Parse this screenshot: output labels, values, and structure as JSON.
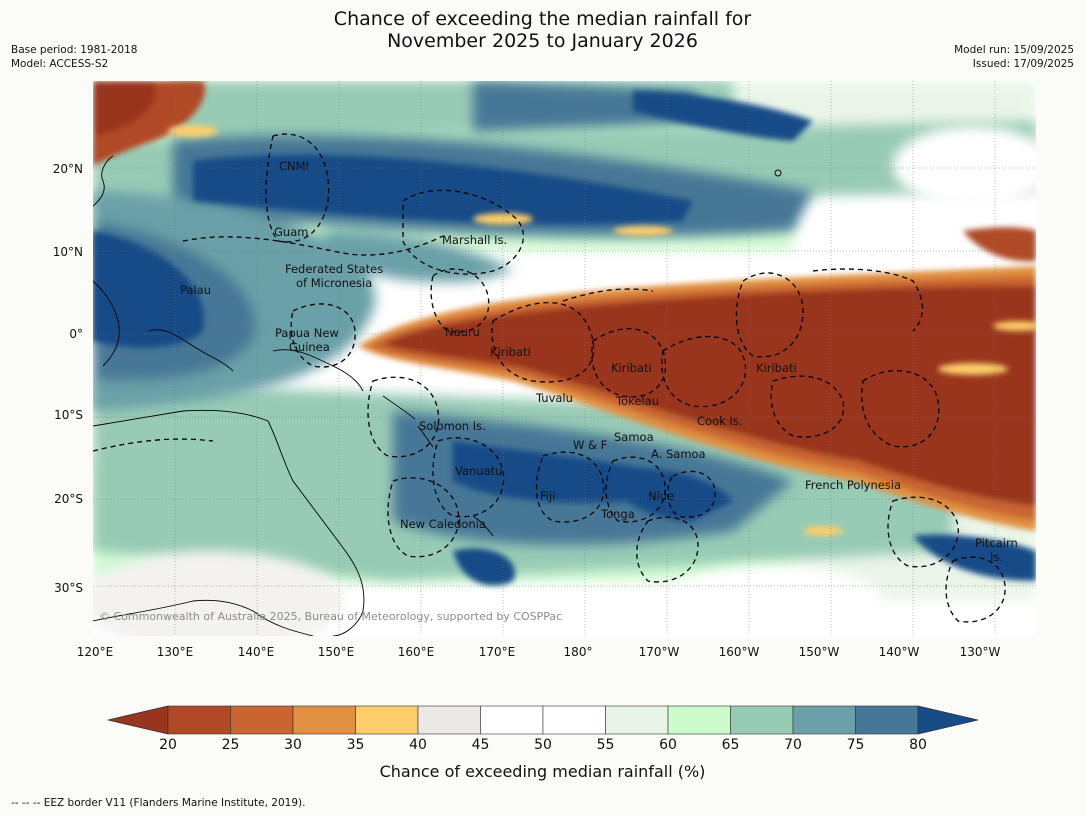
{
  "title": {
    "line1": "Chance of exceeding the median rainfall for",
    "line2": "November 2025 to January 2026"
  },
  "meta_left": {
    "base_period": "Base period: 1981-2018",
    "model": "Model: ACCESS-S2"
  },
  "meta_right": {
    "model_run": "Model run: 15/09/2025",
    "issued": "Issued: 17/09/2025"
  },
  "map": {
    "lon_range": [
      120,
      235
    ],
    "lat_range": [
      -36,
      31
    ],
    "lon_ticks": [
      "120°E",
      "130°E",
      "140°E",
      "150°E",
      "160°E",
      "170°E",
      "180°",
      "170°W",
      "160°W",
      "150°W",
      "140°W",
      "130°W"
    ],
    "lat_ticks": [
      "20°N",
      "10°N",
      "0°",
      "10°S",
      "20°S",
      "30°S"
    ],
    "labels": {
      "cnmi": "CNMI",
      "guam": "Guam",
      "marshall": "Marshall Is.",
      "fsm_1": "Federated States",
      "fsm_2": "of Micronesia",
      "palau": "Palau",
      "png_1": "Papua New",
      "png_2": "Guinea",
      "nauru": "Nauru",
      "kiribati_w": "Kiribati",
      "kiribati_c": "Kiribati",
      "kiribati_e": "Kiribati",
      "tuvalu": "Tuvalu",
      "tokelau": "Tokelau",
      "cook": "Cook Is.",
      "solomon": "Solomon Is.",
      "wf": "W & F",
      "samoa": "Samoa",
      "asamoa": "A. Samoa",
      "vanuatu": "Vanuatu",
      "fiji": "Fiji",
      "niue": "Niue",
      "tonga": "Tonga",
      "french_polynesia": "French Polynesia",
      "new_caledonia": "New Caledonia",
      "pitcairn_1": "Pitcairn",
      "pitcairn_2": "Is."
    },
    "copyright": "© Commonwealth of Australia 2025, Bureau of Meteorology, supported by COSPPac"
  },
  "colorbar": {
    "ticks": [
      "20",
      "25",
      "30",
      "35",
      "40",
      "45",
      "50",
      "55",
      "60",
      "65",
      "70",
      "75",
      "80"
    ],
    "colors": [
      "#99341f",
      "#b04a26",
      "#c96530",
      "#e09040",
      "#fccd6a",
      "#ece9e5",
      "#ffffff",
      "#ffffff",
      "#e8f5e6",
      "#ccfbcc",
      "#98cbb5",
      "#6ba0a8",
      "#467796",
      "#184c87"
    ],
    "label": "Chance of exceeding median rainfall (%)"
  },
  "footer": "-- -- -- EEZ border V11 (Flanders Marine Institute, 2019)."
}
